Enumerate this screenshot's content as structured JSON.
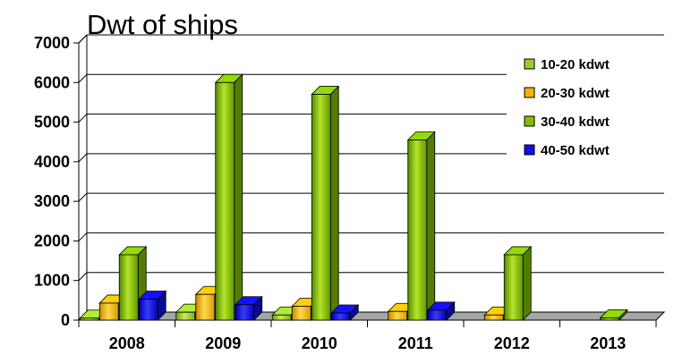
{
  "chart_data": {
    "type": "bar",
    "title": "Dwt of ships",
    "xlabel": "",
    "ylabel": "",
    "categories": [
      "2008",
      "2009",
      "2010",
      "2011",
      "2012",
      "2013"
    ],
    "ylim": [
      0,
      7000
    ],
    "yticks": [
      "0",
      "1000",
      "2000",
      "3000",
      "4000",
      "5000",
      "6000",
      "7000"
    ],
    "grid": true,
    "legend_position": "top-right",
    "series": [
      {
        "name": "10-20 kdwt",
        "color": "#9acd32",
        "values": [
          50,
          200,
          130,
          0,
          0,
          0
        ]
      },
      {
        "name": "20-30 kdwt",
        "color": "#f0b400",
        "values": [
          430,
          650,
          350,
          220,
          130,
          0
        ]
      },
      {
        "name": "30-40 kdwt",
        "color": "#7fbf00",
        "values": [
          1650,
          6000,
          5700,
          4550,
          1650,
          60
        ]
      },
      {
        "name": "40-50 kdwt",
        "color": "#1010e0",
        "values": [
          530,
          390,
          180,
          250,
          0,
          0
        ]
      }
    ]
  }
}
